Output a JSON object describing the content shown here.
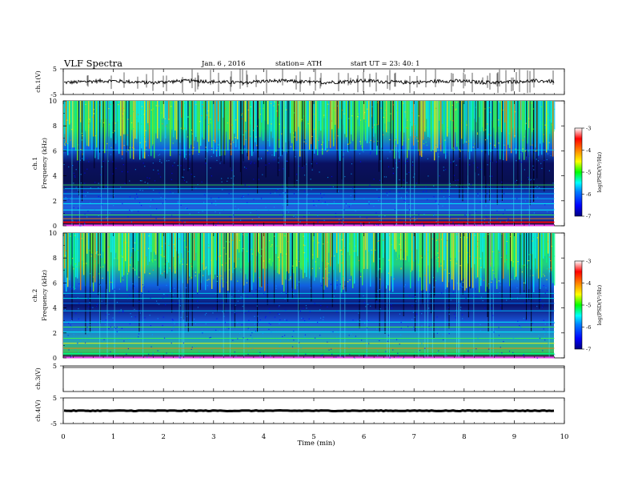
{
  "header": {
    "title": "VLF  Spectra",
    "date": "Jan. 6  , 2016",
    "station": "station= ATH",
    "start": "start  UT  =   23: 40: 1"
  },
  "chart_data": {
    "type": "heatmap",
    "x_axis": {
      "label": "Time  (min)",
      "range": [
        0,
        10
      ],
      "ticks": [
        "0",
        "1",
        "2",
        "3",
        "4",
        "5",
        "6",
        "7",
        "8",
        "9",
        "10"
      ]
    },
    "panels": [
      {
        "name": "ch.1 waveform",
        "type": "line",
        "ylabel": "ch.1(V)",
        "ylim": [
          -5,
          5
        ],
        "yticks": [
          "5",
          "-5"
        ],
        "baseline": 0,
        "data_end_min": 9.8
      },
      {
        "name": "ch.1 spectrogram",
        "type": "heatmap",
        "ylabel_top": "ch.1",
        "ylabel": "Frequency  (kHz)",
        "ylim": [
          0,
          10
        ],
        "yticks": [
          "0",
          "2",
          "4",
          "6",
          "8",
          "10"
        ],
        "data_end_min": 9.8,
        "colorbar": {
          "label": "log(PSD(V²/Hz)",
          "range": [
            -7,
            -3
          ],
          "ticks": [
            "-3",
            "-4",
            "-5",
            "-6",
            "-7"
          ]
        }
      },
      {
        "name": "ch.2 spectrogram",
        "type": "heatmap",
        "ylabel_top": "ch.2",
        "ylabel": "Frequency  (kHz)",
        "ylim": [
          0,
          10
        ],
        "yticks": [
          "0",
          "2",
          "4",
          "6",
          "8",
          "10"
        ],
        "data_end_min": 9.8,
        "colorbar": {
          "label": "log(PSD(V²/Hz)",
          "range": [
            -7,
            -3
          ],
          "ticks": [
            "-3",
            "-4",
            "-5",
            "-6",
            "-7"
          ]
        }
      },
      {
        "name": "ch.3 waveform",
        "type": "line",
        "ylabel": "ch.3(V)",
        "ylim": [
          -5,
          5
        ],
        "yticks": [
          "5"
        ],
        "baseline": 5
      },
      {
        "name": "ch.4 waveform",
        "type": "line",
        "ylabel": "ch.4(V)",
        "ylim": [
          -5,
          5
        ],
        "yticks": [
          "5",
          "-5"
        ],
        "baseline": 0,
        "data_end_min": 9.8
      }
    ],
    "colors": {
      "colormap": [
        "#000080",
        "#0000ff",
        "#0080ff",
        "#00ffff",
        "#00ff00",
        "#ffff00",
        "#ff8000",
        "#ff0000",
        "#ffffff"
      ]
    }
  }
}
